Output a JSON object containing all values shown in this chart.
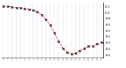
{
  "title": "",
  "x_hours": [
    0,
    1,
    2,
    3,
    4,
    5,
    6,
    7,
    8,
    9,
    10,
    11,
    12,
    13,
    14,
    15,
    16,
    17,
    18,
    19,
    20,
    21,
    22,
    23
  ],
  "pressure": [
    30.22,
    30.2,
    30.19,
    30.17,
    30.15,
    30.13,
    30.11,
    30.08,
    30.03,
    29.92,
    29.78,
    29.58,
    29.32,
    29.05,
    28.82,
    28.68,
    28.62,
    28.65,
    28.74,
    28.82,
    28.88,
    28.9,
    28.96,
    29.02
  ],
  "line_color": "#ff0000",
  "marker_color": "#000000",
  "bg_color": "#ffffff",
  "grid_color": "#888888",
  "ylim_min": 28.5,
  "ylim_max": 30.35,
  "ytick_vals": [
    28.6,
    28.8,
    29.0,
    29.2,
    29.4,
    29.6,
    29.8,
    30.0,
    30.2
  ],
  "figsize": [
    1.6,
    0.87
  ],
  "dpi": 100
}
